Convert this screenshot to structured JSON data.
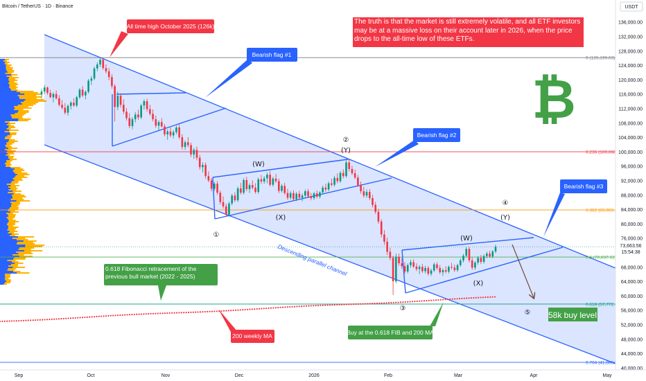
{
  "header": {
    "symbol": "Bitcoin / TetherUS · 1D · Binance",
    "currency": "USDT"
  },
  "chart_data": {
    "type": "candlestick",
    "y_axis": {
      "ticks": [
        136000,
        132000,
        128000,
        124000,
        120000,
        116000,
        112000,
        108000,
        104000,
        100000,
        96000,
        92000,
        88000,
        84000,
        80000,
        76000,
        72000,
        68000,
        64000,
        60000,
        56000,
        52000,
        48000,
        44000,
        40000
      ],
      "tick_labels": [
        "136,000.00",
        "132,000.00",
        "128,000.00",
        "124,000.00",
        "120,000.00",
        "116,000.00",
        "112,000.00",
        "108,000.00",
        "104,000.00",
        "100,000.00",
        "96,000.00",
        "92,000.00",
        "88,000.00",
        "84,000.00",
        "80,000.00",
        "76,000.00",
        "72,000.00",
        "68,000.00",
        "64,000.00",
        "60,000.00",
        "56,000.00",
        "52,000.00",
        "48,000.00",
        "44,000.00",
        "40,000.00"
      ],
      "range": [
        39500,
        139500
      ]
    },
    "x_axis": {
      "labels": [
        "Sep",
        "Oct",
        "Nov",
        "Dec",
        "2026",
        "Feb",
        "Mar",
        "Apr",
        "May"
      ]
    },
    "last_price": {
      "value": "73,663.56",
      "countdown": "15:54:38"
    },
    "candles": [
      [
        116000,
        117500,
        114800,
        116800
      ],
      [
        116800,
        118600,
        116100,
        117900
      ],
      [
        117900,
        118200,
        115900,
        116400
      ],
      [
        116400,
        117300,
        114900,
        115200
      ],
      [
        115200,
        116600,
        113800,
        116100
      ],
      [
        116100,
        117100,
        114500,
        114900
      ],
      [
        114900,
        115800,
        112600,
        113100
      ],
      [
        113100,
        114400,
        111800,
        112300
      ],
      [
        112300,
        113600,
        110400,
        110900
      ],
      [
        110900,
        113200,
        110100,
        112800
      ],
      [
        112800,
        114100,
        111800,
        113700
      ],
      [
        113700,
        114900,
        112500,
        112900
      ],
      [
        112900,
        115600,
        112400,
        115200
      ],
      [
        115200,
        117800,
        114700,
        117300
      ],
      [
        117300,
        118300,
        115200,
        115700
      ],
      [
        115700,
        117100,
        114600,
        116700
      ],
      [
        116700,
        120300,
        116200,
        119800
      ],
      [
        119800,
        121100,
        118600,
        120400
      ],
      [
        120400,
        123700,
        119900,
        123200
      ],
      [
        123200,
        124900,
        122400,
        124300
      ],
      [
        124300,
        126200,
        123600,
        125600
      ],
      [
        125600,
        126000,
        122800,
        123300
      ],
      [
        123300,
        124300,
        121800,
        122400
      ],
      [
        122400,
        123300,
        119900,
        120800
      ],
      [
        120800,
        121600,
        117600,
        118300
      ],
      [
        118300,
        118800,
        108500,
        112500
      ],
      [
        112500,
        116800,
        111600,
        115600
      ],
      [
        115600,
        116300,
        112300,
        113100
      ],
      [
        113100,
        114600,
        110500,
        111200
      ],
      [
        111200,
        112200,
        108700,
        109400
      ],
      [
        109400,
        110800,
        106600,
        107200
      ],
      [
        107200,
        109700,
        106300,
        109100
      ],
      [
        109100,
        111100,
        108200,
        110400
      ],
      [
        110400,
        111700,
        108900,
        109600
      ],
      [
        109600,
        113400,
        109100,
        112900
      ],
      [
        112900,
        114600,
        111800,
        114100
      ],
      [
        114100,
        114800,
        111200,
        111900
      ],
      [
        111900,
        113100,
        110100,
        110600
      ],
      [
        110600,
        111800,
        108500,
        109100
      ],
      [
        109100,
        110100,
        106700,
        107300
      ],
      [
        107300,
        108800,
        105900,
        108300
      ],
      [
        108300,
        109400,
        106800,
        107100
      ],
      [
        107100,
        107800,
        104300,
        104900
      ],
      [
        104900,
        106300,
        103400,
        105700
      ],
      [
        105700,
        106800,
        104100,
        104600
      ],
      [
        104600,
        106100,
        103800,
        105500
      ],
      [
        105500,
        107300,
        104900,
        106800
      ],
      [
        106800,
        107600,
        103600,
        104100
      ],
      [
        104100,
        104900,
        100700,
        101400
      ],
      [
        101400,
        103200,
        100600,
        102700
      ],
      [
        102700,
        104100,
        101300,
        101900
      ],
      [
        101900,
        102600,
        98600,
        99300
      ],
      [
        99300,
        101100,
        98100,
        100600
      ],
      [
        100600,
        101500,
        97700,
        98400
      ],
      [
        98400,
        99200,
        95100,
        95800
      ],
      [
        95800,
        97100,
        94300,
        96400
      ],
      [
        96400,
        97100,
        92600,
        93300
      ],
      [
        93300,
        94600,
        91600,
        92100
      ],
      [
        92100,
        92800,
        89100,
        89800
      ],
      [
        89800,
        91700,
        89200,
        91200
      ],
      [
        91200,
        91900,
        88100,
        88700
      ],
      [
        88700,
        89300,
        85400,
        86100
      ],
      [
        86100,
        87700,
        84300,
        84900
      ],
      [
        84900,
        85700,
        82000,
        82600
      ],
      [
        82600,
        86200,
        82100,
        85700
      ],
      [
        85700,
        88400,
        85200,
        87900
      ],
      [
        87900,
        88800,
        86100,
        86600
      ],
      [
        86600,
        90400,
        86100,
        89900
      ],
      [
        89900,
        91400,
        88200,
        88700
      ],
      [
        88700,
        92700,
        88200,
        92200
      ],
      [
        92200,
        93100,
        89100,
        89700
      ],
      [
        89700,
        91300,
        88600,
        90800
      ],
      [
        90800,
        92100,
        89600,
        90100
      ],
      [
        90100,
        91300,
        88400,
        88900
      ],
      [
        88900,
        92900,
        88400,
        92400
      ],
      [
        92400,
        93600,
        91100,
        91800
      ],
      [
        91800,
        93300,
        91200,
        92700
      ],
      [
        92700,
        94300,
        91300,
        93700
      ],
      [
        93700,
        94700,
        90400,
        90900
      ],
      [
        90900,
        93100,
        90400,
        92600
      ],
      [
        92600,
        93900,
        91400,
        91900
      ],
      [
        91900,
        92600,
        88600,
        89200
      ],
      [
        89200,
        91100,
        88700,
        90600
      ],
      [
        90600,
        91400,
        88100,
        88600
      ],
      [
        88600,
        89800,
        86700,
        87300
      ],
      [
        87300,
        89100,
        86800,
        88600
      ],
      [
        88600,
        89400,
        86400,
        86900
      ],
      [
        86900,
        88900,
        86400,
        88400
      ],
      [
        88400,
        89200,
        86800,
        87300
      ],
      [
        87300,
        88500,
        86300,
        87900
      ],
      [
        87900,
        89600,
        87400,
        89100
      ],
      [
        89100,
        89800,
        87200,
        87700
      ],
      [
        87700,
        88600,
        86600,
        87200
      ],
      [
        87200,
        88900,
        86700,
        88500
      ],
      [
        88500,
        89300,
        87100,
        87600
      ],
      [
        87600,
        89100,
        87100,
        88800
      ],
      [
        88800,
        90700,
        88300,
        90100
      ],
      [
        90100,
        91200,
        88900,
        89600
      ],
      [
        89600,
        91800,
        89100,
        91300
      ],
      [
        91300,
        92600,
        90400,
        90900
      ],
      [
        90900,
        93400,
        90400,
        92800
      ],
      [
        92800,
        94100,
        91300,
        91900
      ],
      [
        91900,
        94700,
        91400,
        94200
      ],
      [
        94200,
        95200,
        92700,
        93300
      ],
      [
        93300,
        97700,
        92900,
        97100
      ],
      [
        97100,
        97900,
        94600,
        95300
      ],
      [
        95300,
        96200,
        93600,
        94100
      ],
      [
        94100,
        95100,
        92400,
        92900
      ],
      [
        92900,
        93600,
        90300,
        90800
      ],
      [
        90800,
        91800,
        88400,
        89100
      ],
      [
        89100,
        90300,
        87300,
        87900
      ],
      [
        87900,
        89600,
        87300,
        88900
      ],
      [
        88900,
        89700,
        86600,
        87200
      ],
      [
        87200,
        88100,
        84600,
        85300
      ],
      [
        85300,
        86100,
        82800,
        83400
      ],
      [
        83400,
        84200,
        80100,
        80700
      ],
      [
        80700,
        81300,
        76300,
        77100
      ],
      [
        77100,
        78300,
        74200,
        75100
      ],
      [
        75100,
        76200,
        71400,
        72300
      ],
      [
        72300,
        73400,
        69900,
        70600
      ],
      [
        70600,
        71200,
        60300,
        64100
      ],
      [
        64100,
        71800,
        63600,
        70900
      ],
      [
        70900,
        71800,
        68400,
        69100
      ],
      [
        69100,
        70600,
        67600,
        68300
      ],
      [
        68300,
        69400,
        66200,
        66800
      ],
      [
        66800,
        69100,
        66300,
        68600
      ],
      [
        68600,
        70100,
        67900,
        69400
      ],
      [
        69400,
        70200,
        67800,
        68200
      ],
      [
        68200,
        69100,
        66900,
        67500
      ],
      [
        67500,
        68600,
        66100,
        68100
      ],
      [
        68100,
        68900,
        66400,
        66900
      ],
      [
        66900,
        68400,
        66300,
        67800
      ],
      [
        67800,
        68300,
        65700,
        66200
      ],
      [
        66200,
        67600,
        65600,
        67100
      ],
      [
        67100,
        69300,
        66700,
        68800
      ],
      [
        68800,
        69400,
        67300,
        67800
      ],
      [
        67800,
        68600,
        66100,
        66600
      ],
      [
        66600,
        67700,
        65600,
        67200
      ],
      [
        67200,
        68300,
        66300,
        66800
      ],
      [
        66800,
        68500,
        66300,
        68100
      ],
      [
        68100,
        69200,
        67400,
        67900
      ],
      [
        67900,
        68700,
        66700,
        67200
      ],
      [
        67200,
        69000,
        66700,
        68600
      ],
      [
        68600,
        70400,
        68100,
        69900
      ],
      [
        69900,
        71700,
        69300,
        71200
      ],
      [
        71200,
        73600,
        70700,
        73100
      ],
      [
        73100,
        73600,
        69300,
        69900
      ],
      [
        69900,
        70700,
        67300,
        67900
      ],
      [
        67900,
        69700,
        67300,
        69300
      ],
      [
        69300,
        71100,
        68700,
        70600
      ],
      [
        70600,
        71400,
        68900,
        69500
      ],
      [
        69500,
        71600,
        69000,
        71100
      ],
      [
        71100,
        72300,
        70500,
        71800
      ],
      [
        71800,
        72600,
        70600,
        71000
      ],
      [
        71000,
        72800,
        70500,
        72400
      ],
      [
        72400,
        74300,
        71900,
        73700
      ]
    ],
    "annotations": {
      "callouts": [
        {
          "text": "All time high October 2025 (126k)",
          "color": "#f23645"
        },
        {
          "text": "Bearish flag #1",
          "color": "#2962ff"
        },
        {
          "text": "Bearish flag #2",
          "color": "#2962ff"
        },
        {
          "text": "Bearish flag #3",
          "color": "#2962ff"
        },
        {
          "text": "0.618 Fibonacci retracement of the previous bull market (2022 - 2025)",
          "color": "#43a047"
        },
        {
          "text": "200 weekly MA",
          "color": "#f23645"
        },
        {
          "text": "Buy at the 0.618 FIB and 200 MA",
          "color": "#43a047"
        },
        {
          "text": "The truth is that the market is still extremely volatile, and all ETF investors may be at a massive loss on their account later in 2026, when the price drops to the all-time low of these ETFs.",
          "color": "#f23645"
        }
      ],
      "buy_level_label": "58k buy level",
      "channel_label": "Descending parallel channel",
      "fib_levels": [
        {
          "label": "0 (126,199.63)",
          "value": 126199.63,
          "color": "#787b86"
        },
        {
          "label": "0.236 (100,068.85)",
          "value": 100068.85,
          "color": "#f23645"
        },
        {
          "label": "0.382 (83,903.20)",
          "value": 83903.2,
          "color": "#ff9800"
        },
        {
          "label": "0.5 (70,837.62)",
          "value": 70837.62,
          "color": "#4caf50"
        },
        {
          "label": "0.618 (57,772.43)",
          "value": 57772.43,
          "color": "#089981"
        },
        {
          "label": "0.764 (41,606.78)",
          "value": 41606.78,
          "color": "#2962ff"
        }
      ],
      "waves": [
        "②",
        "(Y)",
        "(W)",
        "(X)",
        "①",
        "③",
        "(W)",
        "(X)",
        "④",
        "(Y)",
        "⑤"
      ]
    }
  }
}
